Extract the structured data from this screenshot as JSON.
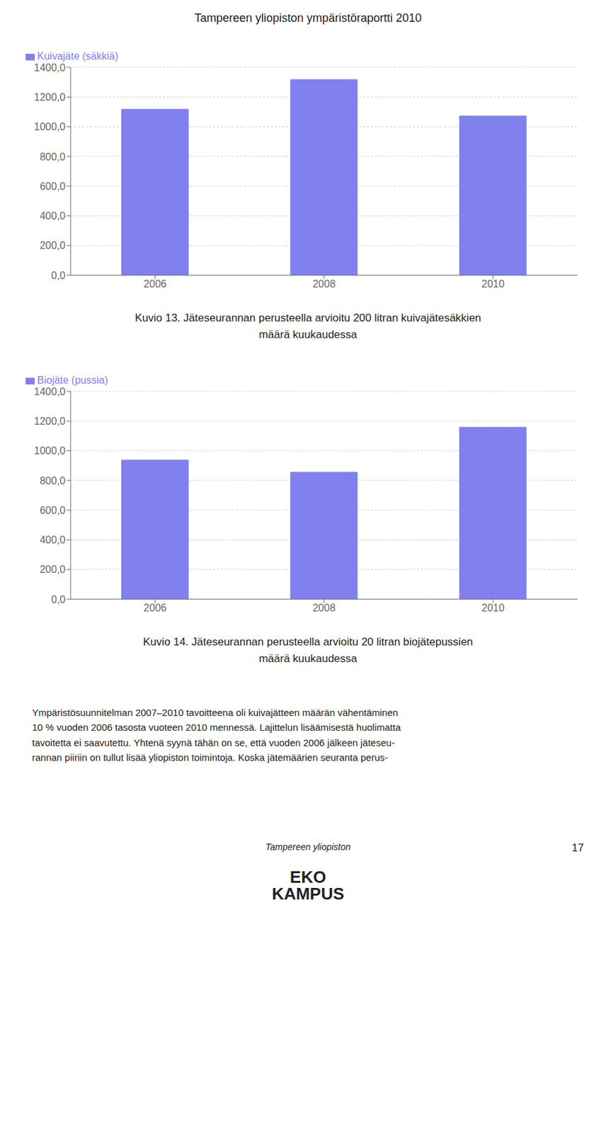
{
  "title": "Tampereen yliopiston ympäristöraportti 2010",
  "annotations": [
    "Ympäristösuunnitelman 2007–2010 tavoitteena oli kuivajätteen määrän vähentäminen\n10 % vuoden 2006 tasosta vuoteen 2010 mennessä. Lajittelun lisäämisestä huolimatta\ntavoitetta ei saavutettu. Yhtenä syynä tähän on se, että vuoden 2006 jälkeen jäteseu-\nrannan piiriin on tullut lisää yliopiston toimintoja. Koska jätemäärien seuranta perus-",
    "Tampereen yliopiston",
    "17",
    "EKO\nKAMPUS"
  ],
  "chart_data": [
    {
      "type": "bar",
      "title": "Kuvio 13. Jäteseurannan perusteella arvioitu 200 litran kuivajätesäkkien\nmäärä kuukaudessa",
      "categories": [
        "2006",
        "2008",
        "2010"
      ],
      "series": [
        {
          "name": "Kuivajäte (säkkiä)",
          "color": "#8080ee",
          "values": [
            1120,
            1320,
            1075
          ]
        }
      ],
      "ylim": [
        0,
        1400
      ],
      "yticks": [
        {
          "value": 0,
          "label": "0,0"
        },
        {
          "value": 200,
          "label": "200,0"
        },
        {
          "value": 400,
          "label": "400,0"
        },
        {
          "value": 600,
          "label": "600,0"
        },
        {
          "value": 800,
          "label": "800,0"
        },
        {
          "value": 1000,
          "label": "1000,0"
        },
        {
          "value": 1200,
          "label": "1200,0"
        },
        {
          "value": 1400,
          "label": "1400,0"
        }
      ],
      "grid": true,
      "legend": "upper left"
    },
    {
      "type": "bar",
      "title": "Kuvio 14. Jäteseurannan perusteella arvioitu 20 litran biojätepussien\nmäärä kuukaudessa",
      "categories": [
        "2006",
        "2008",
        "2010"
      ],
      "series": [
        {
          "name": "Biojäte (pussia)",
          "color": "#8080ee",
          "values": [
            940,
            858,
            1160
          ]
        }
      ],
      "ylim": [
        0,
        1400
      ],
      "yticks": [
        {
          "value": 0,
          "label": "0,0"
        },
        {
          "value": 200,
          "label": "200,0"
        },
        {
          "value": 400,
          "label": "400,0"
        },
        {
          "value": 600,
          "label": "600,0"
        },
        {
          "value": 800,
          "label": "800,0"
        },
        {
          "value": 1000,
          "label": "1000,0"
        },
        {
          "value": 1200,
          "label": "1200,0"
        },
        {
          "value": 1400,
          "label": "1400,0"
        }
      ],
      "grid": true,
      "legend": "upper left"
    }
  ]
}
